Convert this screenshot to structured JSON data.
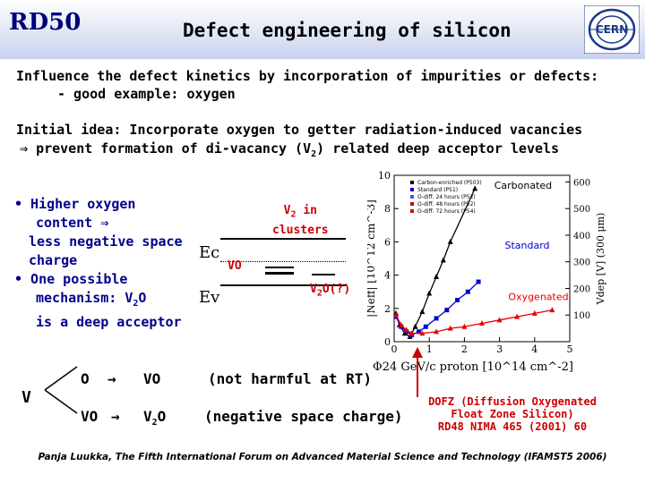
{
  "header": {
    "brand": "RD50",
    "title": "Defect engineering of silicon",
    "logo_text": "CERN"
  },
  "intro": {
    "line1": "Influence the defect kinetics by incorporation of impurities or defects:",
    "line2": "- good example: oxygen"
  },
  "idea": {
    "line1": "Initial idea: Incorporate oxygen to getter radiation-induced vacancies",
    "line2_arrow": "⇒",
    "line2_a": "prevent formation of di-vacancy (V",
    "line2_sub": "2",
    "line2_b": ")  related deep acceptor levels"
  },
  "bullets": {
    "b1_l1": "• Higher oxygen",
    "b1_l2": "content ⇒",
    "b1_l3": "less negative space",
    "b1_l4": "charge",
    "b2_l1": "• One possible",
    "b2_l2a": "mechanism:  V",
    "b2_l2sub": "2",
    "b2_l2b": "O",
    "b2_l3": "is a deep acceptor"
  },
  "band_diagram": {
    "ec": "Ec",
    "ev": "Ev",
    "v2_label_a": "V",
    "v2_label_sub": "2",
    "v2_label_b": " in",
    "v2_label_c": "clusters",
    "vo_label": "VO",
    "v2o_a": "V",
    "v2o_sub": "2",
    "v2o_b": "O(?)"
  },
  "reactions": {
    "v": "V",
    "r1_reactant": "O",
    "r1_product": "VO",
    "r1_note": "(not harmful at RT)",
    "r2_reactant": "VO",
    "r2_product_a": "V",
    "r2_product_sub": "2",
    "r2_product_b": "O",
    "r2_note": "(negative space charge)",
    "arrow": "→"
  },
  "dofz": {
    "l1": "DOFZ (Diffusion Oxygenated",
    "l2": "Float Zone Silicon)",
    "l3": "RD48 NIMA 465 (2001) 60"
  },
  "footer": "Panja Luukka, The Fifth International Forum on Advanced Material Science and Technology (IFAMST5 2006)",
  "colors": {
    "brand": "#00007a",
    "bullet_text": "#00008b",
    "red": "#cc0000",
    "standard": "#0000cc",
    "oxygenated": "#e60000",
    "carbonated": "#000000"
  },
  "chart_data": {
    "type": "scatter",
    "xlabel": "Φ24 GeV/c proton [10^14 cm^-2]",
    "ylabel_left": "|Neff| [10^12 cm^-3]",
    "ylabel_right": "Vdep [V] (300 μm)",
    "xlim": [
      0,
      5
    ],
    "ylim": [
      0,
      10
    ],
    "ylim_right": [
      0,
      625
    ],
    "x_ticks": [
      "0",
      "1",
      "2",
      "3",
      "4",
      "5"
    ],
    "y_ticks": [
      "0",
      "2",
      "4",
      "6",
      "8",
      "10"
    ],
    "y_right_ticks": [
      "100",
      "200",
      "300",
      "400",
      "500",
      "600"
    ],
    "legend": [
      "Carbon-enriched (P503)",
      "Standard (P51)",
      "O-diff. 24 hours (P52)",
      "O-diff. 48 hours (P52)",
      "O-diff. 72 hours (P54)"
    ],
    "curve_labels": [
      "Carbonated",
      "Standard",
      "Oxygenated"
    ],
    "series": [
      {
        "name": "Carbonated",
        "color": "#000000",
        "marker": "triangle",
        "x": [
          0.05,
          0.15,
          0.3,
          0.45,
          0.6,
          0.8,
          1.0,
          1.2,
          1.4,
          1.6,
          2.3
        ],
        "y": [
          1.7,
          1.0,
          0.5,
          0.3,
          0.9,
          1.8,
          2.9,
          3.9,
          4.9,
          6.0,
          9.2
        ]
      },
      {
        "name": "Standard",
        "color": "#0000cc",
        "marker": "square",
        "x": [
          0.05,
          0.2,
          0.35,
          0.5,
          0.7,
          0.9,
          1.2,
          1.5,
          1.8,
          2.1,
          2.4
        ],
        "y": [
          1.5,
          0.9,
          0.6,
          0.4,
          0.6,
          0.9,
          1.4,
          1.9,
          2.5,
          3.0,
          3.6
        ]
      },
      {
        "name": "Oxygenated",
        "color": "#e60000",
        "marker": "triangle",
        "x": [
          0.05,
          0.2,
          0.35,
          0.5,
          0.8,
          1.2,
          1.6,
          2.0,
          2.5,
          3.0,
          3.5,
          4.0,
          4.5
        ],
        "y": [
          1.6,
          1.0,
          0.7,
          0.5,
          0.5,
          0.6,
          0.8,
          0.9,
          1.1,
          1.3,
          1.5,
          1.7,
          1.9
        ]
      }
    ]
  }
}
